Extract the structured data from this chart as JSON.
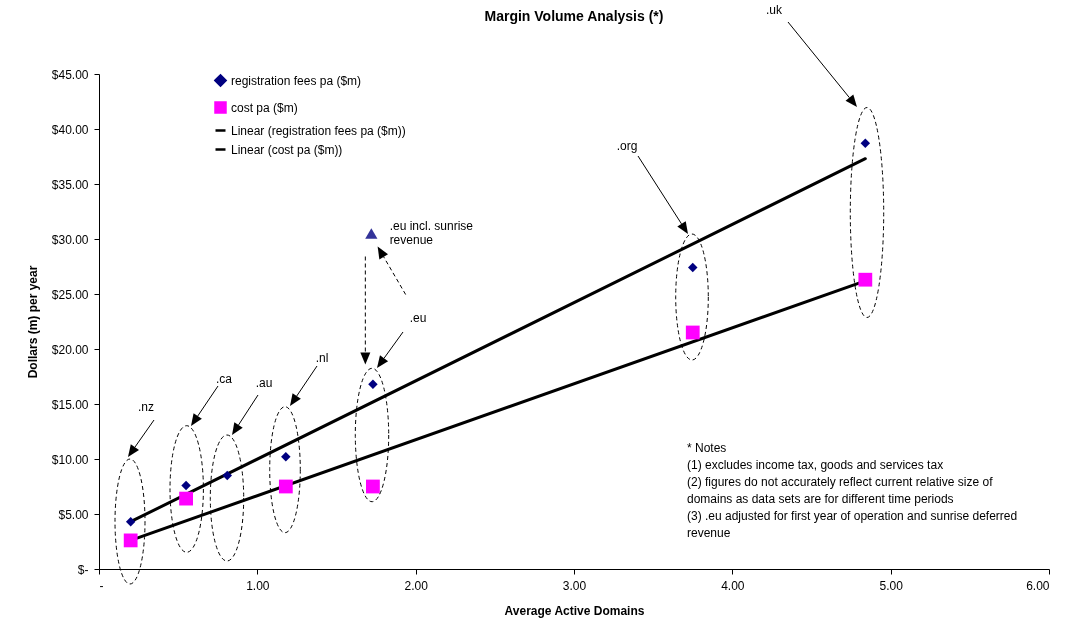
{
  "chart_data": {
    "type": "scatter",
    "title": "Margin Volume Analysis (*)",
    "xlabel": "Average Active Domains",
    "ylabel": "Dollars (m) per year",
    "xlim": [
      0,
      6
    ],
    "xticks": [
      {
        "value": 0,
        "label": "-"
      },
      {
        "value": 1,
        "label": "1.00"
      },
      {
        "value": 2,
        "label": "2.00"
      },
      {
        "value": 3,
        "label": "3.00"
      },
      {
        "value": 4,
        "label": "4.00"
      },
      {
        "value": 5,
        "label": "5.00"
      },
      {
        "value": 6,
        "label": "6.00"
      }
    ],
    "ylim": [
      0,
      45
    ],
    "yticks": [
      {
        "value": 0,
        "label": "$-"
      },
      {
        "value": 5,
        "label": "$5.00"
      },
      {
        "value": 10,
        "label": "$10.00"
      },
      {
        "value": 15,
        "label": "$15.00"
      },
      {
        "value": 20,
        "label": "$20.00"
      },
      {
        "value": 25,
        "label": "$25.00"
      },
      {
        "value": 30,
        "label": "$30.00"
      },
      {
        "value": 35,
        "label": "$35.00"
      },
      {
        "value": 40,
        "label": "$40.00"
      },
      {
        "value": 45,
        "label": "$45.00"
      }
    ],
    "legend": "top left",
    "grid": false,
    "line_style": "solid",
    "series": [
      {
        "name": "registration fees pa ($m)",
        "marker": "diamond",
        "color": "#000080",
        "x": [
          0.2,
          0.55,
          0.81,
          1.18,
          1.73,
          3.75,
          4.84
        ],
        "values": [
          4.3,
          7.6,
          8.5,
          10.2,
          16.8,
          27.4,
          38.7
        ]
      },
      {
        "name": "cost pa ($m)",
        "marker": "square",
        "color": "#ff00ff",
        "x": [
          0.2,
          0.55,
          1.18,
          1.73,
          3.75,
          4.84
        ],
        "values": [
          2.6,
          6.4,
          7.5,
          7.5,
          21.5,
          26.3
        ]
      },
      {
        "marker": "triangle",
        "color": "#333399",
        "x": [
          1.72
        ],
        "values": [
          30.5
        ]
      },
      {
        "name": "Linear (registration fees pa ($m))",
        "type": "line",
        "color": "#000000",
        "x": [
          0.2,
          4.84
        ],
        "values": [
          4.3,
          37.3
        ]
      },
      {
        "name": "Linear (cost pa ($m))",
        "type": "line",
        "color": "#000000",
        "x": [
          0.2,
          4.84
        ],
        "values": [
          2.6,
          26.2
        ]
      }
    ],
    "annotations": [
      ".nz",
      ".ca",
      ".au",
      ".nl",
      ".eu",
      {
        "text": ".eu incl. sunrise revenue",
        "x": 1.72,
        "y": 30.5
      },
      ".org",
      ".uk",
      "* Notes",
      "(1) excludes income tax, goods and services tax",
      "(2) figures do not accurately reflect current relative size of domains as data sets are for different time periods",
      "(3) .eu adjusted for first year of operation and sunrise deferred revenue"
    ]
  }
}
